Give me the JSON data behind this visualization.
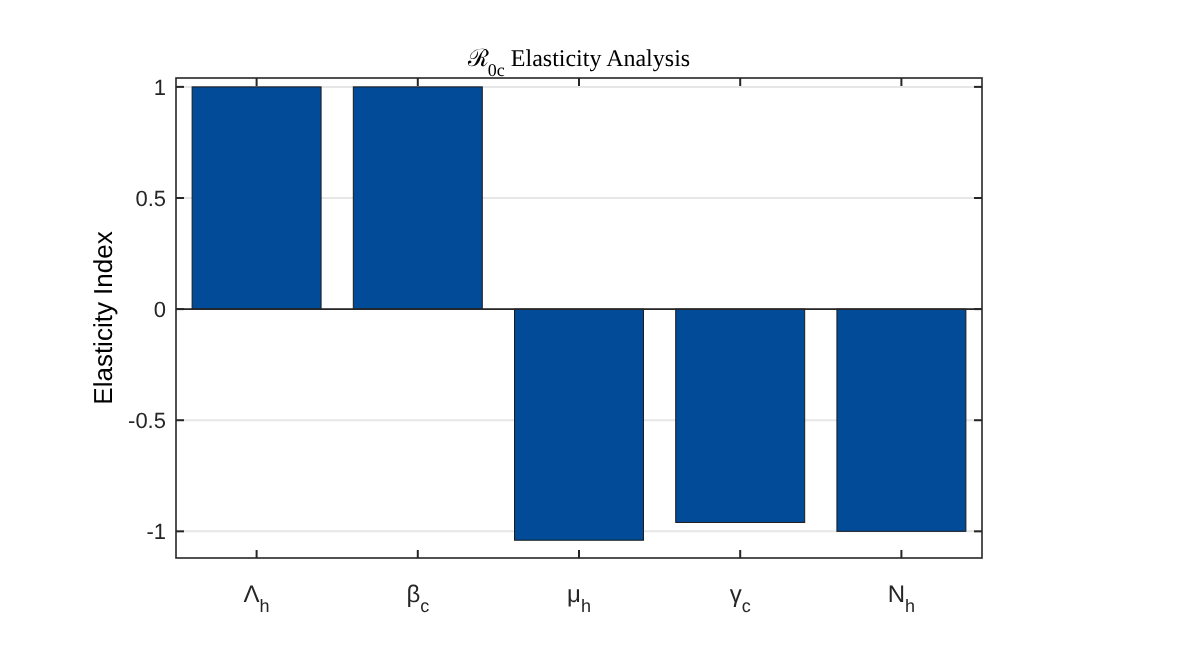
{
  "chart_data": {
    "type": "bar",
    "title": "ℛ$_{0c}$ Elasticity Analysis",
    "ylabel": "Elasticity Index",
    "categories": [
      "Λ$_{h}$",
      "β$_{c}$",
      "μ$_{h}$",
      "γ$_{c}$",
      "N$_{h}$"
    ],
    "values": [
      1,
      1,
      -1.04,
      -0.96,
      -1
    ],
    "color": "#024b98",
    "ylim": [
      -1.12,
      1.04
    ],
    "yticks": [
      -1,
      -0.5,
      0,
      0.5,
      1
    ],
    "grid": "y"
  }
}
